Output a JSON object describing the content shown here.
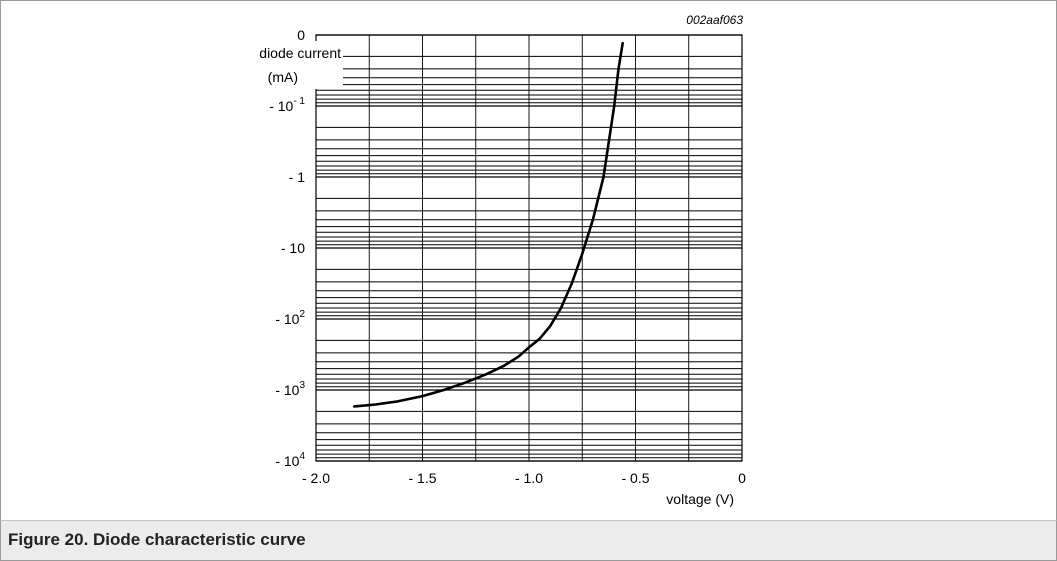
{
  "figure_id": "002aaf063",
  "caption": "Figure 20.  Diode characteristic curve",
  "chart_data": {
    "type": "line",
    "title": "",
    "xlabel": "voltage (V)",
    "ylabel_line1": "diode current",
    "ylabel_line2": "(mA)",
    "xlim": [
      -2.0,
      0
    ],
    "y_scale": "log",
    "y_range_abs_mA": [
      0.01,
      10000
    ],
    "x_ticks": [
      {
        "value": -2.0,
        "label": "- 2.0"
      },
      {
        "value": -1.5,
        "label": "- 1.5"
      },
      {
        "value": -1.0,
        "label": "- 1.0"
      },
      {
        "value": -0.5,
        "label": "- 0.5"
      },
      {
        "value": 0,
        "label": "0"
      }
    ],
    "y_ticks": [
      {
        "value": 0,
        "base": "0",
        "exp": ""
      },
      {
        "value": -0.1,
        "base": "- 10",
        "exp": "- 1"
      },
      {
        "value": -1,
        "base": "- 1",
        "exp": ""
      },
      {
        "value": -10,
        "base": "- 10",
        "exp": ""
      },
      {
        "value": -100,
        "base": "- 10",
        "exp": "2"
      },
      {
        "value": -1000,
        "base": "- 10",
        "exp": "3"
      },
      {
        "value": -10000,
        "base": "- 10",
        "exp": "4"
      }
    ],
    "grid": true,
    "series": [
      {
        "x": [
          -1.82,
          -1.72,
          -1.62,
          -1.5,
          -1.4,
          -1.3,
          -1.2,
          -1.12,
          -1.05,
          -1.0,
          -0.95,
          -0.9,
          -0.85,
          -0.8,
          -0.75,
          -0.7,
          -0.65,
          -0.6,
          -0.58,
          -0.56
        ],
        "y": [
          -1700,
          -1600,
          -1450,
          -1220,
          -1000,
          -790,
          -600,
          -460,
          -340,
          -250,
          -190,
          -125,
          -70,
          -32,
          -12,
          -4,
          -1,
          -0.1,
          -0.03,
          -0.013
        ]
      }
    ]
  }
}
